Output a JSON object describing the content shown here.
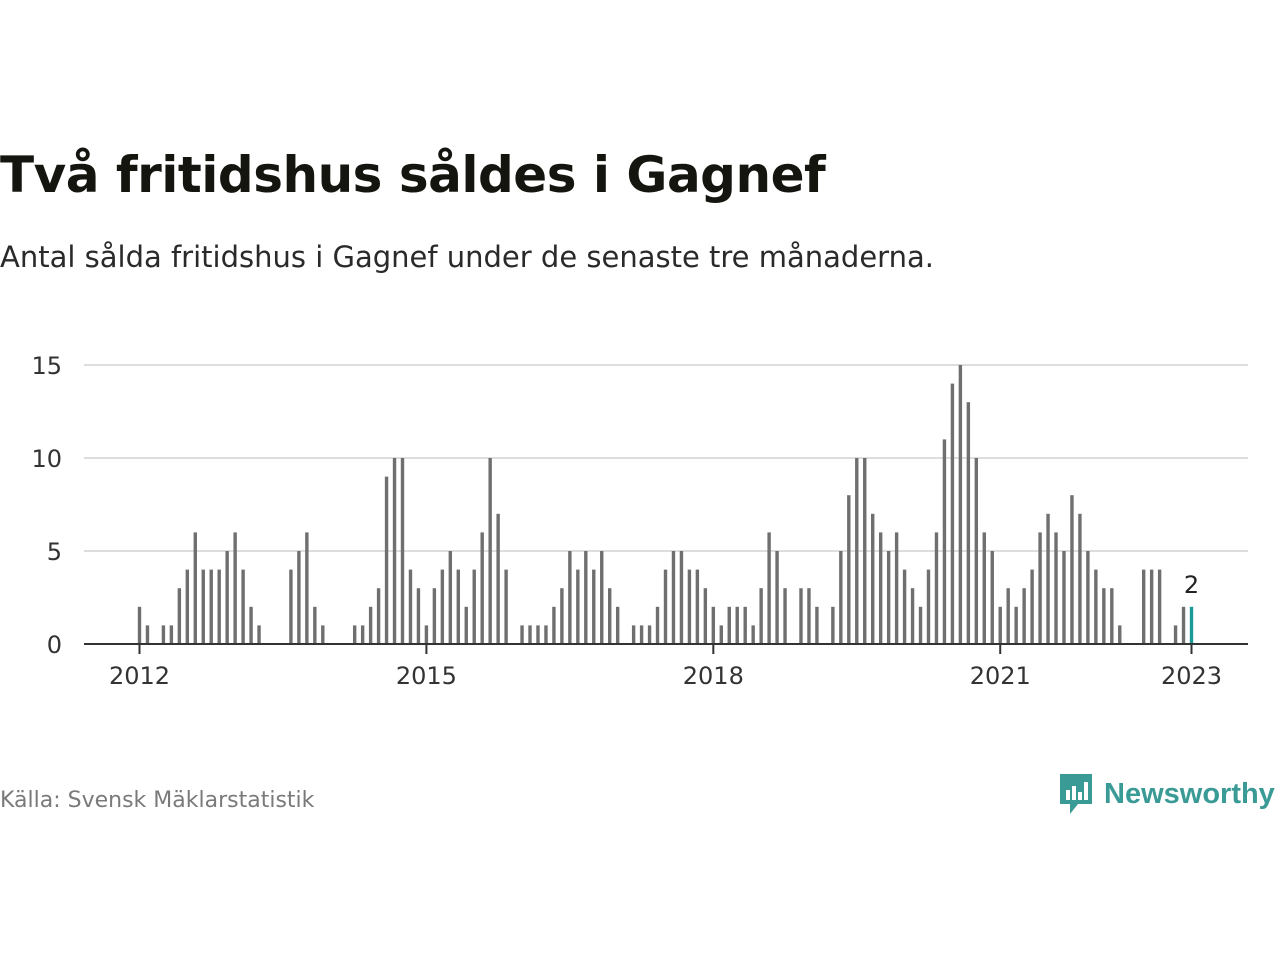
{
  "title": "Två fritidshus såldes i Gagnef",
  "subtitle": "Antal sålda fritidshus i Gagnef under de senaste tre månaderna.",
  "source": "Källa: Svensk Mäklarstatistik",
  "brand": {
    "name": "Newsworthy",
    "icon": "newsworthy-logo-icon",
    "color": "#3a9a96"
  },
  "colors": {
    "bar": "#6f6f6f",
    "highlight": "#1a9a96",
    "grid": "#dddddd",
    "axis": "#333333"
  },
  "chart_data": {
    "type": "bar",
    "xlabel": "",
    "ylabel": "",
    "ylim": [
      0,
      15
    ],
    "yticks": [
      0,
      5,
      10,
      15
    ],
    "xticks": [
      "2012",
      "2015",
      "2018",
      "2021",
      "2023"
    ],
    "grid": true,
    "series": [
      {
        "values": [
          2,
          1,
          0,
          1,
          1,
          3,
          4,
          6,
          4,
          4,
          4,
          5,
          6,
          4,
          2,
          1,
          0,
          0,
          0,
          4,
          5,
          6,
          2,
          1,
          0,
          0,
          0,
          1,
          1,
          2,
          3,
          9,
          10,
          10,
          4,
          3,
          1,
          3,
          4,
          5,
          4,
          2,
          4,
          6,
          10,
          7,
          4,
          0,
          1,
          1,
          1,
          1,
          2,
          3,
          5,
          4,
          5,
          4,
          5,
          3,
          2,
          0,
          1,
          1,
          1,
          2,
          4,
          5,
          5,
          4,
          4,
          3,
          2,
          1,
          2,
          2,
          2,
          1,
          3,
          6,
          5,
          3,
          0,
          3,
          3,
          2,
          0,
          2,
          5,
          8,
          10,
          10,
          7,
          6,
          5,
          6,
          4,
          3,
          2,
          4,
          6,
          11,
          14,
          15,
          13,
          10,
          6,
          5,
          2,
          3,
          2,
          3,
          4,
          6,
          7,
          6,
          5,
          8,
          7,
          5,
          4,
          3,
          3,
          1,
          0,
          0,
          4,
          4,
          4,
          0,
          1,
          2,
          2
        ]
      }
    ],
    "annotation": {
      "label": "2",
      "value": 2
    }
  }
}
